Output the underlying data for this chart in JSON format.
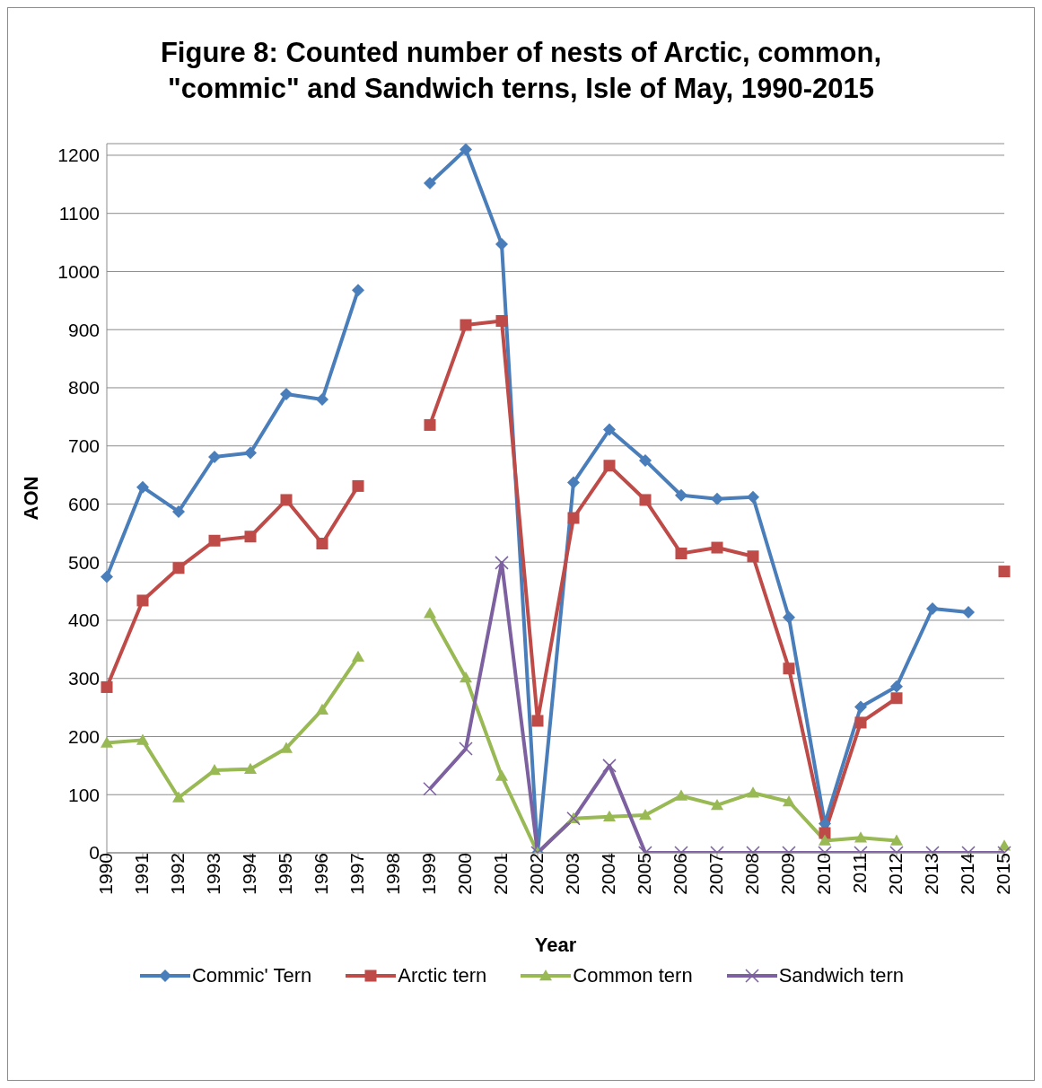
{
  "chart_data": {
    "type": "line",
    "title": "Figure 8: Counted number of nests of Arctic, common, \"commic\" and Sandwich terns, Isle of May, 1990-2015",
    "xlabel": "Year",
    "ylabel": "AON",
    "categories": [
      "1990",
      "1991",
      "1992",
      "1993",
      "1994",
      "1995",
      "1996",
      "1997",
      "1998",
      "1999",
      "2000",
      "2001",
      "2002",
      "2003",
      "2004",
      "2005",
      "2006",
      "2007",
      "2008",
      "2009",
      "2010",
      "2011",
      "2012",
      "2013",
      "2014",
      "2015"
    ],
    "series": [
      {
        "name": "Commic' Tern",
        "color": "#4a7ebb",
        "marker": "diamond",
        "values": [
          475,
          629,
          587,
          681,
          688,
          789,
          780,
          968,
          null,
          1152,
          1210,
          1047,
          0,
          637,
          728,
          675,
          615,
          609,
          612,
          405,
          50,
          251,
          286,
          420,
          414,
          null
        ]
      },
      {
        "name": "Arctic tern",
        "color": "#be4b48",
        "marker": "square",
        "values": [
          285,
          434,
          490,
          537,
          544,
          607,
          532,
          631,
          null,
          736,
          908,
          915,
          227,
          576,
          666,
          607,
          515,
          525,
          510,
          317,
          34,
          224,
          266,
          null,
          null,
          484
        ]
      },
      {
        "name": "Common tern",
        "color": "#98b954",
        "marker": "triangle",
        "values": [
          189,
          194,
          95,
          142,
          144,
          180,
          246,
          337,
          null,
          412,
          301,
          132,
          0,
          59,
          62,
          65,
          98,
          82,
          103,
          88,
          21,
          26,
          21,
          null,
          null,
          12
        ]
      },
      {
        "name": "Sandwich tern",
        "color": "#7d60a0",
        "marker": "cross",
        "values": [
          null,
          null,
          null,
          null,
          null,
          null,
          null,
          null,
          null,
          110,
          179,
          499,
          0,
          59,
          150,
          0,
          0,
          0,
          0,
          0,
          0,
          0,
          0,
          0,
          0,
          0
        ]
      }
    ],
    "ylim": [
      0,
      1220
    ],
    "yticks": [
      0,
      100,
      200,
      300,
      400,
      500,
      600,
      700,
      800,
      900,
      1000,
      1100,
      1200
    ],
    "grid": "y",
    "legend": "bottom",
    "line_style": "solid"
  }
}
